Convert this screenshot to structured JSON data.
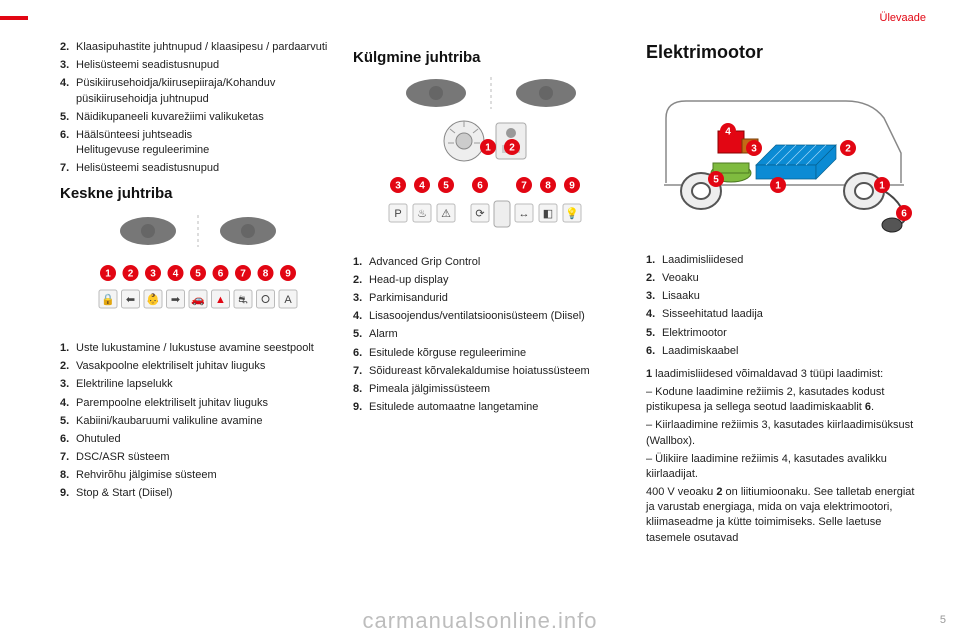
{
  "header": "Ülevaade",
  "page_number": "5",
  "watermark": "carmanualsonline.info",
  "col1": {
    "pre_list": [
      {
        "n": "2.",
        "t": "Klaasipuhastite juhtnupud / klaasipesu / pardaarvuti"
      },
      {
        "n": "3.",
        "t": "Helisüsteemi seadistusnupud"
      },
      {
        "n": "4.",
        "t": "Püsikiirusehoidja/kiirusepiiraja/Kohanduv püsikiirusehoidja juhtnupud"
      },
      {
        "n": "5.",
        "t": "Näidikupaneeli kuvarežiimi valikuketas"
      },
      {
        "n": "6.",
        "t": "Häälsünteesi juhtseadis\nHelitugevuse reguleerimine"
      },
      {
        "n": "7.",
        "t": "Helisüsteemi seadistusnupud"
      }
    ],
    "heading": "Keskne juhtriba",
    "post_list": [
      {
        "n": "1.",
        "t": "Uste lukustamine / lukustuse avamine seestpoolt"
      },
      {
        "n": "2.",
        "t": "Vasakpoolne elektriliselt juhitav liuguks"
      },
      {
        "n": "3.",
        "t": "Elektriline lapselukk"
      },
      {
        "n": "4.",
        "t": "Parempoolne elektriliselt juhitav liuguks"
      },
      {
        "n": "5.",
        "t": "Kabiini/kaubaruumi valikuline avamine"
      },
      {
        "n": "6.",
        "t": "Ohutuled"
      },
      {
        "n": "7.",
        "t": "DSC/ASR süsteem"
      },
      {
        "n": "8.",
        "t": "Rehvirõhu jälgimise süsteem"
      },
      {
        "n": "9.",
        "t": "Stop & Start (Diisel)"
      }
    ]
  },
  "col2": {
    "heading": "Külgmine juhtriba",
    "list": [
      {
        "n": "1.",
        "t": "Advanced Grip Control"
      },
      {
        "n": "2.",
        "t": "Head-up display"
      },
      {
        "n": "3.",
        "t": "Parkimisandurid"
      },
      {
        "n": "4.",
        "t": "Lisasoojendus/ventilatsioonisüsteem (Diisel)"
      },
      {
        "n": "5.",
        "t": "Alarm"
      },
      {
        "n": "6.",
        "t": "Esitulede kõrguse reguleerimine"
      },
      {
        "n": "7.",
        "t": "Sõidureast kõrvalekaldumise hoiatussüsteem"
      },
      {
        "n": "8.",
        "t": "Pimeala jälgimissüsteem"
      },
      {
        "n": "9.",
        "t": "Esitulede automaatne langetamine"
      }
    ]
  },
  "col3": {
    "heading": "Elektrimootor",
    "list": [
      {
        "n": "1.",
        "t": "Laadimisliidesed"
      },
      {
        "n": "2.",
        "t": "Veoaku"
      },
      {
        "n": "3.",
        "t": "Lisaaku"
      },
      {
        "n": "4.",
        "t": "Sisseehitatud laadija"
      },
      {
        "n": "5.",
        "t": "Elektrimootor"
      },
      {
        "n": "6.",
        "t": "Laadimiskaabel"
      }
    ],
    "body": [
      "1 laadimisliidesed võimaldavad 3 tüüpi laadimist:",
      "– Kodune laadimine režiimis 2, kasutades kodust pistikupesa ja sellega seotud laadimiskaablit 6.",
      "– Kiirlaadimine režiimis 3, kasutades kiirlaadimisüksust (Wallbox).",
      "– Ülikiire laadimine režiimis 4, kasutades avalikku kiirlaadijat.",
      "400 V veoaku 2 on liitiumioonaku. See talletab energiat ja varustab energiaga, mida on vaja elektrimootori, kliimaseadme ja kütte toimimiseks. Selle laetuse tasemele osutavad"
    ]
  },
  "style": {
    "badge_fill": "#e20613",
    "badge_text": "#ffffff",
    "icon_stroke": "#333333",
    "icon_fill": "#555555",
    "battery_fill": "#0b8bd4",
    "motor_fill": "#7fbb3f",
    "charger_fill": "#e20613",
    "aux_fill": "#c46a16",
    "cable_fill": "#444444"
  }
}
